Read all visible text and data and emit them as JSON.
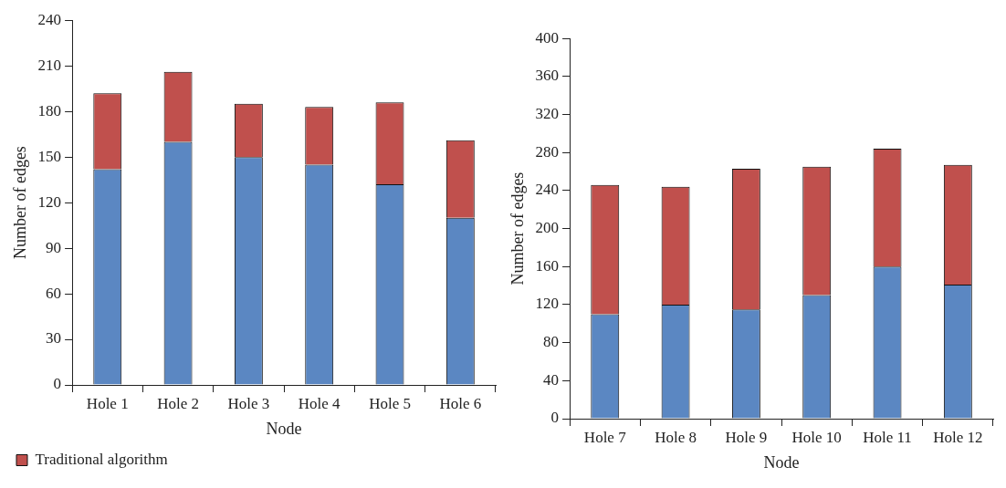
{
  "chart_data": [
    {
      "type": "bar",
      "xlabel": "Node",
      "ylabel": "Number of edges",
      "categories": [
        "Hole 1",
        "Hole 2",
        "Hole 3",
        "Hole 4",
        "Hole 5",
        "Hole 6"
      ],
      "stacked": true,
      "ylim": [
        0,
        240
      ],
      "yticks": [
        0,
        30,
        60,
        90,
        120,
        150,
        180,
        210,
        240
      ],
      "grid": false,
      "legend": "bottom left",
      "series": [
        {
          "color": "#5b87c2",
          "values": [
            142,
            160,
            150,
            145,
            132,
            110
          ]
        },
        {
          "name": "Traditional algorithm",
          "color": "#c0504d",
          "values": [
            50,
            46,
            35,
            38,
            54,
            51
          ]
        }
      ]
    },
    {
      "type": "bar",
      "xlabel": "Node",
      "ylabel": "Number of edges",
      "categories": [
        "Hole 7",
        "Hole 8",
        "Hole 9",
        "Hole 10",
        "Hole 11",
        "Hole 12"
      ],
      "stacked": true,
      "ylim": [
        0,
        400
      ],
      "yticks": [
        0,
        40,
        80,
        120,
        160,
        200,
        240,
        280,
        320,
        360,
        400
      ],
      "grid": false,
      "legend": false,
      "series": [
        {
          "color": "#5b87c2",
          "values": [
            110,
            120,
            115,
            130,
            160,
            141
          ]
        },
        {
          "color": "#c0504d",
          "values": [
            136,
            124,
            148,
            135,
            124,
            126
          ]
        }
      ]
    }
  ]
}
